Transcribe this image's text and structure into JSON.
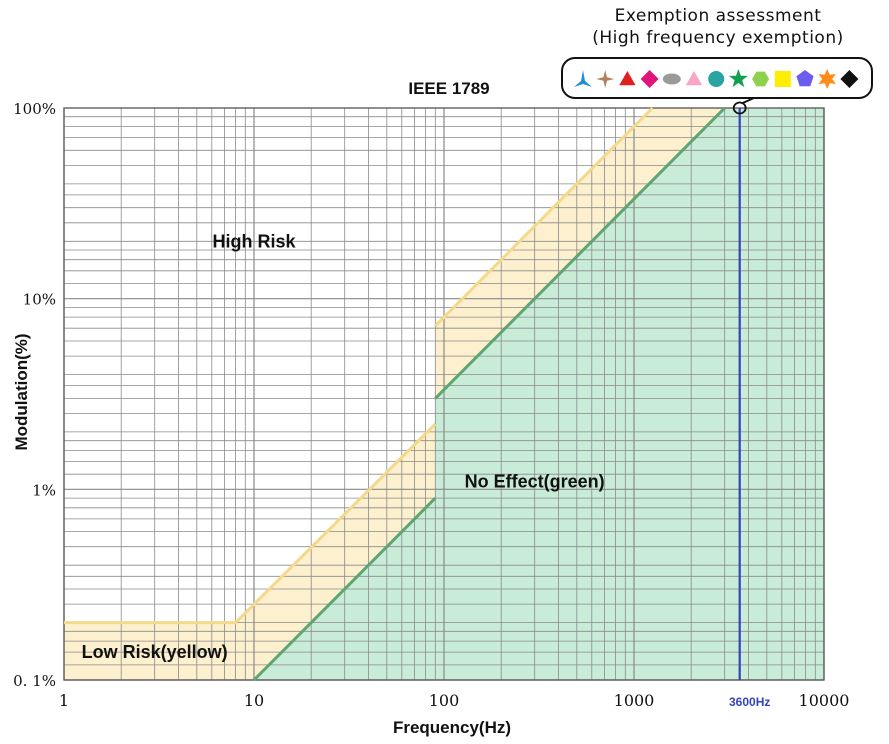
{
  "chart_data": {
    "type": "area",
    "title": "IEEE 1789",
    "xlabel": "Frequency(Hz)",
    "ylabel": "Modulation(%)",
    "x_scale": "log",
    "y_scale": "log",
    "xlim": [
      1,
      10000
    ],
    "ylim": [
      0.1,
      100
    ],
    "grid": true,
    "x_ticks": [
      {
        "value": 1,
        "label": "1"
      },
      {
        "value": 10,
        "label": "10"
      },
      {
        "value": 100,
        "label": "100"
      },
      {
        "value": 1000,
        "label": "1000"
      },
      {
        "value": 10000,
        "label": "10000"
      }
    ],
    "y_ticks": [
      {
        "value": 0.1,
        "label": "0. 1%"
      },
      {
        "value": 1,
        "label": "1%"
      },
      {
        "value": 10,
        "label": "10%"
      },
      {
        "value": 100,
        "label": "100%"
      }
    ],
    "series": [
      {
        "x": [
          1,
          8,
          90
        ],
        "y": [
          0.2,
          0.2,
          2.2
        ]
      },
      {
        "x": [
          90,
          1250
        ],
        "y": [
          7.2,
          100
        ]
      },
      {
        "x": [
          10,
          90
        ],
        "y": [
          0.1,
          0.9
        ]
      },
      {
        "x": [
          90,
          3000
        ],
        "y": [
          3,
          100
        ]
      }
    ],
    "regions": [
      {
        "label": "High Risk",
        "x": 10,
        "y": 20
      },
      {
        "label": "Low Risk(yellow)",
        "x": 3,
        "y": 0.14
      },
      {
        "label": "No Effect(green)",
        "x": 300,
        "y": 1.1
      }
    ],
    "reference_line": {
      "x": 3600,
      "label": "3600Hz",
      "color": "#3344bb"
    },
    "colors": {
      "low_risk_fill": "#fdf0cf",
      "low_risk_line": "#f5d98a",
      "no_effect_fill": "#c8ecd8",
      "no_effect_line": "#5fa572",
      "grid": "#8a8a8a"
    }
  },
  "exemption": {
    "line1": "Exemption assessment",
    "line2": "(High frequency exemption)",
    "icons": [
      {
        "name": "tripod-icon",
        "color": "#1e90d8"
      },
      {
        "name": "four-point-star-icon",
        "color": "#b08060"
      },
      {
        "name": "triangle-icon",
        "color": "#e02020"
      },
      {
        "name": "diamond-icon",
        "color": "#e0147a"
      },
      {
        "name": "ellipse-icon",
        "color": "#9a9a9a"
      },
      {
        "name": "triangle-icon",
        "color": "#f7a6c6"
      },
      {
        "name": "circle-icon",
        "color": "#2aa3a3"
      },
      {
        "name": "star-icon",
        "color": "#10a050"
      },
      {
        "name": "hexagon-icon",
        "color": "#8fd14f"
      },
      {
        "name": "square-icon",
        "color": "#ffee00"
      },
      {
        "name": "pentagon-icon",
        "color": "#6a5df0"
      },
      {
        "name": "six-point-star-icon",
        "color": "#ff8c1a"
      },
      {
        "name": "diamond-icon",
        "color": "#111111"
      }
    ]
  }
}
